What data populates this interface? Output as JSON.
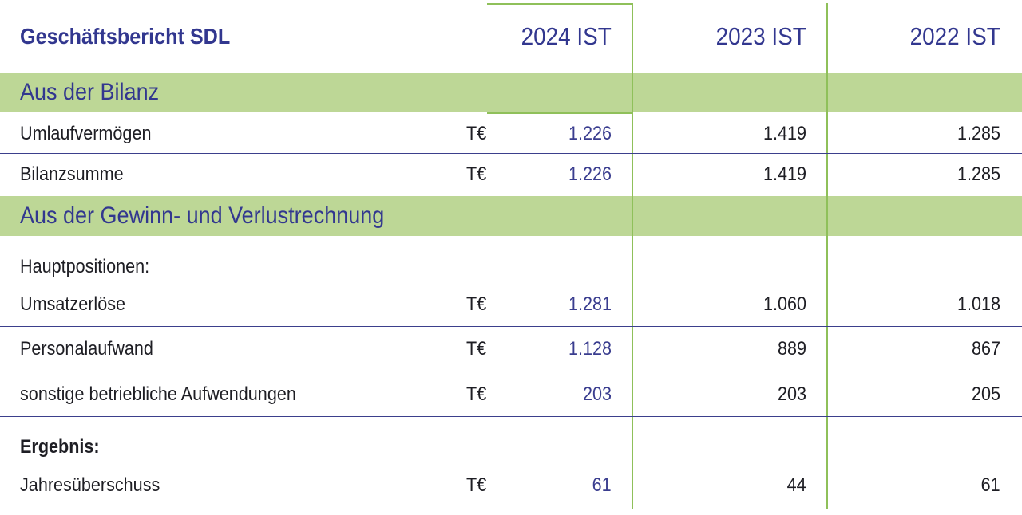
{
  "title": "Geschäftsbericht SDL",
  "columns": [
    "2024 IST",
    "2023 IST",
    "2022 IST"
  ],
  "sections": [
    {
      "heading": "Aus der Bilanz",
      "rows": [
        {
          "label": "Umlaufvermögen",
          "unit": "T€",
          "values": [
            "1.226",
            "1.419",
            "1.285"
          ]
        },
        {
          "label": "Bilanzsumme",
          "unit": "T€",
          "values": [
            "1.226",
            "1.419",
            "1.285"
          ]
        }
      ]
    },
    {
      "heading": "Aus der Gewinn- und Verlustrechnung",
      "subheading": "Hauptpositionen:",
      "rows": [
        {
          "label": "Umsatzerlöse",
          "unit": "T€",
          "values": [
            "1.281",
            "1.060",
            "1.018"
          ]
        },
        {
          "label": "Personalaufwand",
          "unit": "T€",
          "values": [
            "1.128",
            "889",
            "867"
          ]
        },
        {
          "label": "sonstige betriebliche Aufwendungen",
          "unit": "T€",
          "values": [
            "203",
            "203",
            "205"
          ]
        }
      ]
    },
    {
      "subheading": "Ergebnis:",
      "rows": [
        {
          "label": "Jahresüberschuss",
          "unit": "T€",
          "values": [
            "61",
            "44",
            "61"
          ]
        }
      ]
    }
  ],
  "colors": {
    "band": "#bdd796",
    "divider": "#8fc05a",
    "accent": "#32378f",
    "rule": "#3b3f8c"
  }
}
